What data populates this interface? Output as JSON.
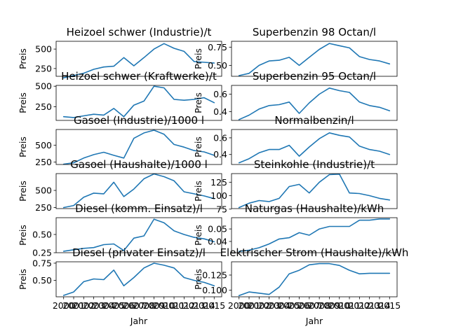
{
  "chart_data": [
    {
      "type": "line",
      "title": "Heizoel schwer (Industrie)/t",
      "ylabel": "Preis",
      "xlabel": "",
      "x": [
        2000,
        2001,
        2002,
        2003,
        2004,
        2005,
        2006,
        2007,
        2008,
        2009,
        2010,
        2011,
        2012,
        2013,
        2014,
        2015
      ],
      "values": [
        130,
        160,
        190,
        240,
        270,
        280,
        390,
        285,
        390,
        500,
        570,
        510,
        470,
        340,
        330,
        320
      ],
      "ylim": [
        150,
        600
      ],
      "yticks": [
        "250",
        "500"
      ],
      "xticks": []
    },
    {
      "type": "line",
      "title": "Superbenzin 98 Octan/l",
      "ylabel": "Preis",
      "xlabel": "",
      "x": [
        2000,
        2001,
        2002,
        2003,
        2004,
        2005,
        2006,
        2007,
        2008,
        2009,
        2010,
        2011,
        2012,
        2013,
        2014,
        2015
      ],
      "values": [
        0.36,
        0.39,
        0.5,
        0.56,
        0.57,
        0.61,
        0.5,
        0.61,
        0.72,
        0.8,
        0.77,
        0.74,
        0.62,
        0.58,
        0.56,
        0.52
      ],
      "ylim": [
        0.35,
        0.83
      ],
      "yticks": [
        "0.50",
        "0.75"
      ],
      "xticks": []
    },
    {
      "type": "line",
      "title": "Heizoel schwer (Kraftwerke)/t",
      "ylabel": "Preis",
      "xlabel": "",
      "x": [
        2000,
        2001,
        2002,
        2003,
        2004,
        2005,
        2006,
        2007,
        2008,
        2009,
        2010,
        2011,
        2012,
        2013,
        2014,
        2015
      ],
      "values": [
        130,
        120,
        140,
        160,
        150,
        230,
        130,
        270,
        320,
        500,
        480,
        340,
        330,
        340,
        360,
        300
      ],
      "ylim": [
        85,
        510
      ],
      "yticks": [
        "250",
        "500"
      ],
      "xticks": []
    },
    {
      "type": "line",
      "title": "Superbenzin 95 Octan/l",
      "ylabel": "Preis",
      "xlabel": "",
      "x": [
        2000,
        2001,
        2002,
        2003,
        2004,
        2005,
        2006,
        2007,
        2008,
        2009,
        2010,
        2011,
        2012,
        2013,
        2014,
        2015
      ],
      "values": [
        0.31,
        0.36,
        0.43,
        0.47,
        0.48,
        0.51,
        0.38,
        0.5,
        0.6,
        0.67,
        0.64,
        0.62,
        0.51,
        0.47,
        0.45,
        0.41
      ],
      "ylim": [
        0.3,
        0.7
      ],
      "yticks": [
        "0.4",
        "0.6"
      ],
      "xticks": []
    },
    {
      "type": "line",
      "title": "Gasoel (Industrie)/1000 l",
      "ylabel": "Preis",
      "xlabel": "",
      "x": [
        2000,
        2001,
        2002,
        2003,
        2004,
        2005,
        2006,
        2007,
        2008,
        2009,
        2010,
        2011,
        2012,
        2013,
        2014,
        2015
      ],
      "values": [
        220,
        240,
        310,
        360,
        395,
        350,
        310,
        600,
        680,
        720,
        660,
        510,
        470,
        420,
        400,
        350
      ],
      "ylim": [
        215,
        730
      ],
      "yticks": [
        "250",
        "500"
      ],
      "xticks": []
    },
    {
      "type": "line",
      "title": "Normalbenzin/l",
      "ylabel": "Preis",
      "xlabel": "",
      "x": [
        2000,
        2001,
        2002,
        2003,
        2004,
        2005,
        2006,
        2007,
        2008,
        2009,
        2010,
        2011,
        2012,
        2013,
        2014,
        2015
      ],
      "values": [
        0.3,
        0.35,
        0.42,
        0.46,
        0.46,
        0.51,
        0.38,
        0.49,
        0.59,
        0.66,
        0.63,
        0.61,
        0.5,
        0.46,
        0.44,
        0.4
      ],
      "ylim": [
        0.28,
        0.7
      ],
      "yticks": [
        "0.4",
        "0.6"
      ],
      "xticks": []
    },
    {
      "type": "line",
      "title": "Gasoel (Haushalte)/1000 l",
      "ylabel": "Preis",
      "xlabel": "",
      "x": [
        2000,
        2001,
        2002,
        2003,
        2004,
        2005,
        2006,
        2007,
        2008,
        2009,
        2010,
        2011,
        2012,
        2013,
        2014,
        2015
      ],
      "values": [
        250,
        280,
        400,
        460,
        450,
        620,
        410,
        520,
        670,
        740,
        700,
        640,
        480,
        450,
        420,
        380
      ],
      "ylim": [
        235,
        745
      ],
      "yticks": [
        "250",
        "500"
      ],
      "xticks": []
    },
    {
      "type": "line",
      "title": "Steinkohle (Industrie)/t",
      "ylabel": "Preis",
      "xlabel": "",
      "x": [
        2000,
        2001,
        2002,
        2003,
        2004,
        2005,
        2006,
        2007,
        2008,
        2009,
        2010,
        2011,
        2012,
        2013,
        2014,
        2015
      ],
      "values": [
        78,
        86,
        91,
        89,
        95,
        117,
        121,
        105,
        125,
        139,
        140,
        105,
        104,
        100,
        95,
        92
      ],
      "ylim": [
        76,
        141
      ],
      "yticks": [
        "75",
        "100",
        "125"
      ],
      "xticks": []
    },
    {
      "type": "line",
      "title": "Diesel (komm. Einsatz)/l",
      "ylabel": "Preis",
      "xlabel": "",
      "x": [
        2000,
        2001,
        2002,
        2003,
        2004,
        2005,
        2006,
        2007,
        2008,
        2009,
        2010,
        2011,
        2012,
        2013,
        2014,
        2015
      ],
      "values": [
        0.27,
        0.29,
        0.31,
        0.32,
        0.36,
        0.37,
        0.28,
        0.45,
        0.48,
        0.71,
        0.66,
        0.55,
        0.5,
        0.46,
        0.44,
        0.4
      ],
      "ylim": [
        0.25,
        0.73
      ],
      "yticks": [
        "0.25",
        "0.50"
      ],
      "xticks": []
    },
    {
      "type": "line",
      "title": "Naturgas (Haushalte)/kWh",
      "ylabel": "Preis",
      "xlabel": "",
      "x": [
        2000,
        2001,
        2002,
        2003,
        2004,
        2005,
        2006,
        2007,
        2008,
        2009,
        2010,
        2011,
        2012,
        2013,
        2014,
        2015
      ],
      "values": [
        0.032,
        0.033,
        0.035,
        0.038,
        0.042,
        0.043,
        0.047,
        0.045,
        0.05,
        0.052,
        0.052,
        0.052,
        0.057,
        0.057,
        0.058,
        0.058
      ],
      "ylim": [
        0.031,
        0.059
      ],
      "yticks": [
        "0.04",
        "0.05"
      ],
      "xticks": []
    },
    {
      "type": "line",
      "title": "Diesel (privater Einsatz)/l",
      "ylabel": "Preis",
      "xlabel": "Jahr",
      "x": [
        2000,
        2001,
        2002,
        2003,
        2004,
        2005,
        2006,
        2007,
        2008,
        2009,
        2010,
        2011,
        2012,
        2013,
        2014,
        2015
      ],
      "values": [
        0.28,
        0.33,
        0.48,
        0.52,
        0.51,
        0.65,
        0.42,
        0.54,
        0.68,
        0.75,
        0.72,
        0.68,
        0.54,
        0.5,
        0.47,
        0.42
      ],
      "ylim": [
        0.26,
        0.77
      ],
      "yticks": [
        "0.50",
        "0.75"
      ],
      "xticks": [
        "2000",
        "2002",
        "2004",
        "2006",
        "2008",
        "2010",
        "2012",
        "2014"
      ],
      "xticks_minor": [
        "2001",
        "2003",
        "2005",
        "2007",
        "2009",
        "2011",
        "2013",
        "2015"
      ]
    },
    {
      "type": "line",
      "title": "Elektrischer Strom (Haushalte)/kWh",
      "ylabel": "Preis",
      "xlabel": "Jahr",
      "x": [
        2000,
        2001,
        2002,
        2003,
        2004,
        2005,
        2006,
        2007,
        2008,
        2009,
        2010,
        2011,
        2012,
        2013,
        2014,
        2015
      ],
      "values": [
        0.091,
        0.097,
        0.095,
        0.093,
        0.105,
        0.127,
        0.133,
        0.142,
        0.144,
        0.144,
        0.141,
        0.133,
        0.127,
        0.128,
        0.128,
        0.128
      ],
      "ylim": [
        0.089,
        0.147
      ],
      "yticks": [
        "0.100",
        "0.125"
      ],
      "xticks": [
        "2000",
        "2002",
        "2004",
        "2006",
        "2008",
        "2010",
        "2012",
        "2014"
      ],
      "xticks_minor": [
        "2001",
        "2003",
        "2005",
        "2007",
        "2009",
        "2011",
        "2013",
        "2015"
      ]
    }
  ]
}
